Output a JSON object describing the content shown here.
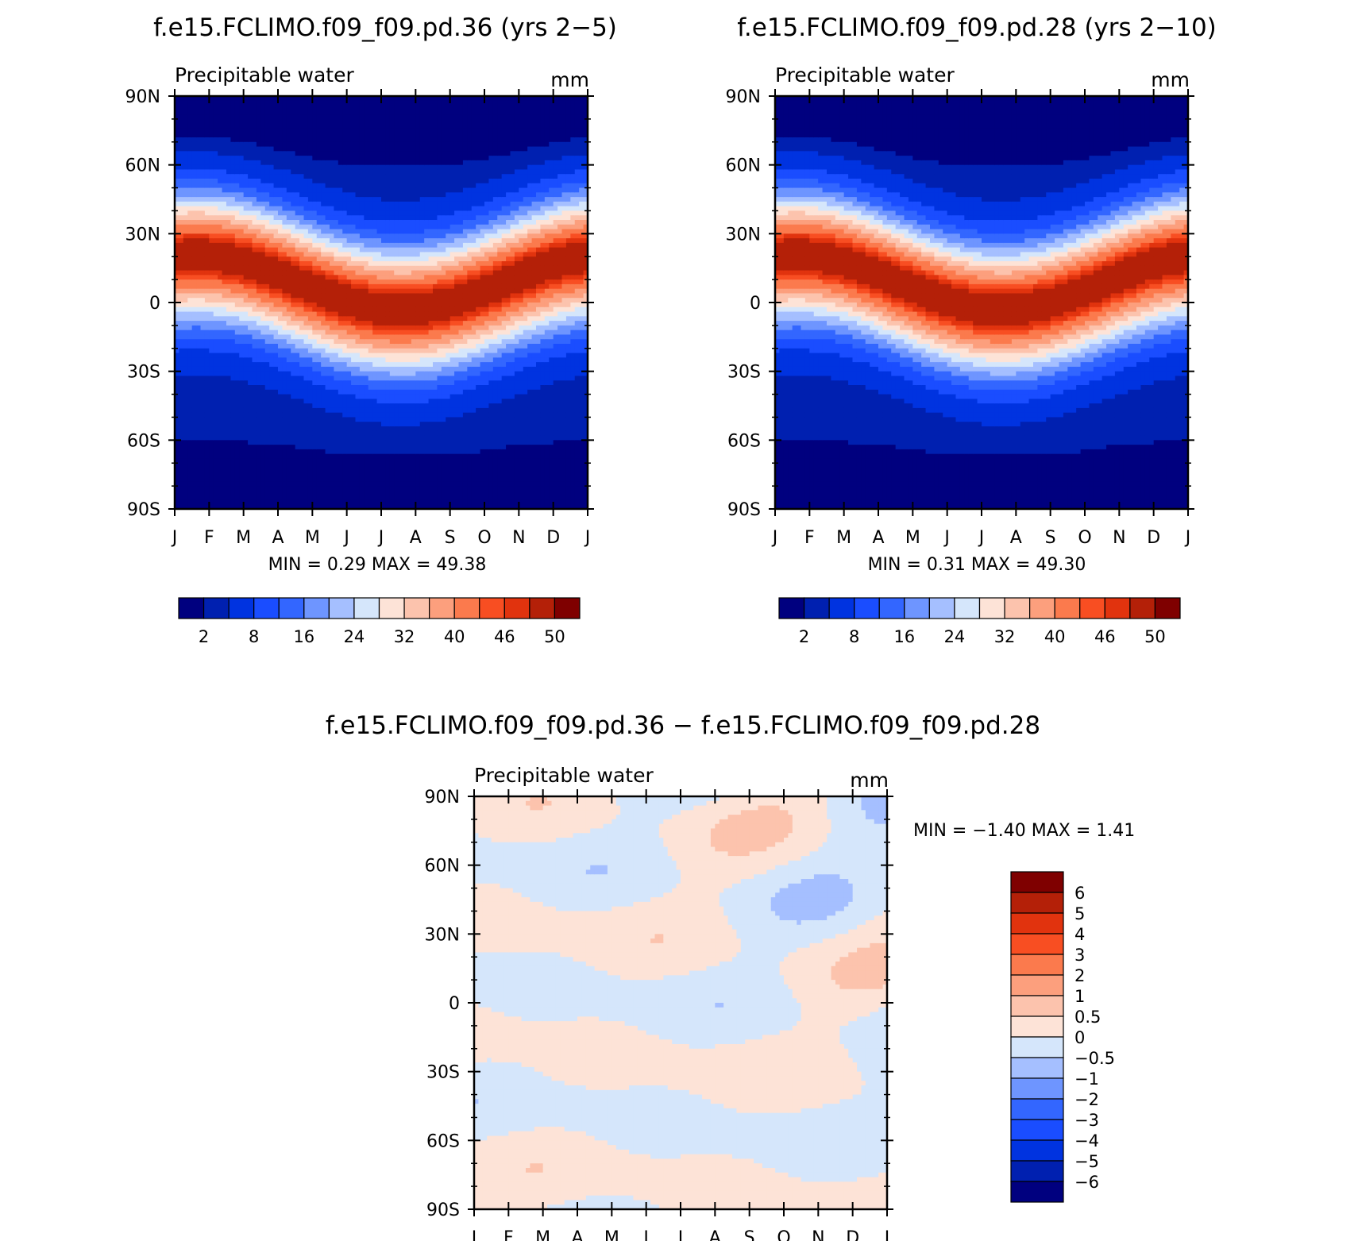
{
  "months": [
    "J",
    "F",
    "M",
    "A",
    "M",
    "J",
    "J",
    "A",
    "S",
    "O",
    "N",
    "D",
    "J"
  ],
  "lat_ticks": [
    "90N",
    "60N",
    "30N",
    "0",
    "30S",
    "60S",
    "90S"
  ],
  "palettes": {
    "main": [
      "#00007f",
      "#0020b0",
      "#0033e0",
      "#1a4dff",
      "#3366ff",
      "#6e95ff",
      "#a5bfff",
      "#d5e6fb",
      "#fde3d7",
      "#fcc3ad",
      "#fc9f7d",
      "#fb7a4d",
      "#f84e22",
      "#e1330e",
      "#b42008",
      "#7f0000"
    ],
    "diff": [
      "#00007f",
      "#0020b0",
      "#0033e0",
      "#1a4dff",
      "#3366ff",
      "#6e95ff",
      "#a5bfff",
      "#d5e6fb",
      "#fde3d7",
      "#fcc3ad",
      "#fc9f7d",
      "#fb7a4d",
      "#f84e22",
      "#e1330e",
      "#b42008",
      "#7f0000"
    ]
  },
  "chart_data": [
    {
      "type": "heatmap",
      "title": "f.e15.FCLIMO.f09_f09.pd.36 (yrs 2−5)",
      "subtitle": "Precipitable water",
      "units": "mm",
      "xlabels": [
        "J",
        "F",
        "M",
        "A",
        "M",
        "J",
        "J",
        "A",
        "S",
        "O",
        "N",
        "D",
        "J"
      ],
      "ylabels": [
        "90N",
        "60N",
        "30N",
        "0",
        "30S",
        "60S",
        "90S"
      ],
      "ylim": [
        -90,
        90
      ],
      "stats": "MIN =    0.29  MAX =    49.38",
      "min": 0.29,
      "max": 49.38,
      "colorbar_labels": [
        "2",
        "8",
        "16",
        "24",
        "32",
        "40",
        "46",
        "50"
      ],
      "levels": [
        0,
        2,
        4,
        8,
        12,
        16,
        20,
        24,
        28,
        32,
        36,
        40,
        44,
        46,
        48,
        50
      ]
    },
    {
      "type": "heatmap",
      "title": "f.e15.FCLIMO.f09_f09.pd.28 (yrs 2−10)",
      "subtitle": "Precipitable water",
      "units": "mm",
      "xlabels": [
        "J",
        "F",
        "M",
        "A",
        "M",
        "J",
        "J",
        "A",
        "S",
        "O",
        "N",
        "D",
        "J"
      ],
      "ylabels": [
        "90N",
        "60N",
        "30N",
        "0",
        "30S",
        "60S",
        "90S"
      ],
      "ylim": [
        -90,
        90
      ],
      "stats": "MIN =    0.31  MAX =    49.30",
      "min": 0.31,
      "max": 49.3,
      "colorbar_labels": [
        "2",
        "8",
        "16",
        "24",
        "32",
        "40",
        "46",
        "50"
      ],
      "levels": [
        0,
        2,
        4,
        8,
        12,
        16,
        20,
        24,
        28,
        32,
        36,
        40,
        44,
        46,
        48,
        50
      ]
    },
    {
      "type": "heatmap",
      "title": "f.e15.FCLIMO.f09_f09.pd.36 − f.e15.FCLIMO.f09_f09.pd.28",
      "subtitle": "Precipitable water",
      "units": "mm",
      "xlabels": [
        "J",
        "F",
        "M",
        "A",
        "M",
        "J",
        "J",
        "A",
        "S",
        "O",
        "N",
        "D",
        "J"
      ],
      "ylabels": [
        "90N",
        "60N",
        "30N",
        "0",
        "30S",
        "60S",
        "90S"
      ],
      "ylim": [
        -90,
        90
      ],
      "stats": "MIN =   −1.40  MAX =     1.41",
      "min": -1.4,
      "max": 1.41,
      "colorbar_labels": [
        "6",
        "5",
        "4",
        "3",
        "2",
        "1",
        "0.5",
        "0",
        "−0.5",
        "−1",
        "−2",
        "−3",
        "−4",
        "−5",
        "−6"
      ],
      "levels": [
        -6,
        -5,
        -4,
        -3,
        -2,
        -1,
        -0.5,
        0,
        0.5,
        1,
        2,
        3,
        4,
        5,
        6
      ]
    }
  ]
}
